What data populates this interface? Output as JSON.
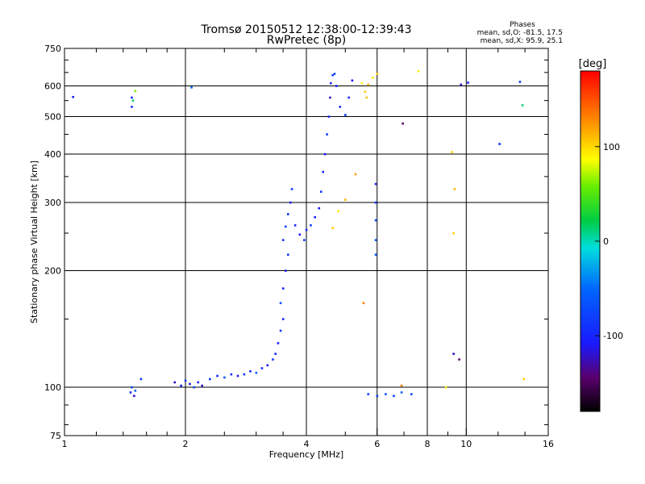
{
  "chart_data": {
    "type": "scatter",
    "title": "Tromsø 20150512 12:38:00-12:39:43",
    "subtitle": "RwPretec (8p)",
    "stats": {
      "heading": "Phases",
      "line_o": "mean, sd,O: -81.5, 17.5",
      "line_x": "mean, sd,X:  95.9, 25.1"
    },
    "xlabel": "Frequency [MHz]",
    "ylabel": "Stationary phase Virtual Height [km]",
    "x_scale": "log2",
    "y_scale": "log",
    "xlim": [
      1,
      16
    ],
    "ylim": [
      75,
      750
    ],
    "x_ticks": [
      {
        "value": 1,
        "label": "1"
      },
      {
        "value": 2,
        "label": "2"
      },
      {
        "value": 4,
        "label": "4"
      },
      {
        "value": 6,
        "label": "6"
      },
      {
        "value": 8,
        "label": "8"
      },
      {
        "value": 10,
        "label": "10"
      },
      {
        "value": 16,
        "label": "16"
      }
    ],
    "x_grid": [
      2,
      4,
      6,
      8,
      10
    ],
    "y_ticks": [
      {
        "value": 75,
        "label": "75"
      },
      {
        "value": 100,
        "label": "100"
      },
      {
        "value": 200,
        "label": "200"
      },
      {
        "value": 300,
        "label": "300"
      },
      {
        "value": 400,
        "label": "400"
      },
      {
        "value": 500,
        "label": "500"
      },
      {
        "value": 600,
        "label": "600"
      },
      {
        "value": 750,
        "label": "750"
      }
    ],
    "y_grid": [
      100,
      200,
      300,
      400,
      500,
      600
    ],
    "grid": true,
    "colorbar": {
      "label": "[deg]",
      "range": [
        -180,
        180
      ],
      "ticks": [
        {
          "value": 100,
          "label": "100"
        },
        {
          "value": 0,
          "label": "0"
        },
        {
          "value": -100,
          "label": "-100"
        }
      ]
    },
    "points": [
      [
        1.05,
        562,
        -110
      ],
      [
        1.47,
        560,
        -100
      ],
      [
        1.47,
        530,
        -95
      ],
      [
        1.5,
        582,
        60
      ],
      [
        1.48,
        550,
        10
      ],
      [
        2.07,
        595,
        -60
      ],
      [
        1.47,
        100,
        -80
      ],
      [
        1.46,
        97,
        -100
      ],
      [
        1.49,
        95,
        -120
      ],
      [
        1.55,
        105,
        -90
      ],
      [
        1.5,
        98,
        -60
      ],
      [
        1.88,
        103,
        -120
      ],
      [
        1.95,
        101,
        -100
      ],
      [
        2.0,
        104,
        -90
      ],
      [
        2.05,
        102,
        -110
      ],
      [
        2.1,
        100,
        -80
      ],
      [
        2.15,
        103,
        -100
      ],
      [
        2.2,
        101,
        -120
      ],
      [
        2.3,
        105,
        -90
      ],
      [
        2.4,
        107,
        -100
      ],
      [
        2.5,
        106,
        -70
      ],
      [
        2.6,
        108,
        -100
      ],
      [
        2.7,
        107,
        -110
      ],
      [
        2.8,
        108,
        -90
      ],
      [
        2.9,
        110,
        -100
      ],
      [
        3.0,
        109,
        -60
      ],
      [
        3.1,
        112,
        -100
      ],
      [
        3.2,
        114,
        -110
      ],
      [
        3.3,
        118,
        -90
      ],
      [
        3.35,
        122,
        -100
      ],
      [
        3.4,
        130,
        -110
      ],
      [
        3.45,
        140,
        -90
      ],
      [
        3.5,
        150,
        -100
      ],
      [
        3.45,
        165,
        -70
      ],
      [
        3.5,
        180,
        -100
      ],
      [
        3.55,
        200,
        -110
      ],
      [
        3.6,
        220,
        -90
      ],
      [
        3.5,
        240,
        -100
      ],
      [
        3.55,
        260,
        -80
      ],
      [
        3.6,
        280,
        -100
      ],
      [
        3.65,
        300,
        -110
      ],
      [
        3.68,
        325,
        -90
      ],
      [
        3.75,
        262,
        -100
      ],
      [
        3.85,
        248,
        -110
      ],
      [
        3.95,
        240,
        -90
      ],
      [
        4.0,
        255,
        -100
      ],
      [
        4.1,
        262,
        -80
      ],
      [
        4.2,
        275,
        -100
      ],
      [
        4.3,
        290,
        -110
      ],
      [
        4.35,
        320,
        -90
      ],
      [
        4.4,
        360,
        -100
      ],
      [
        4.45,
        400,
        -110
      ],
      [
        4.5,
        450,
        -90
      ],
      [
        4.55,
        500,
        -100
      ],
      [
        4.58,
        560,
        -120
      ],
      [
        4.6,
        610,
        -100
      ],
      [
        4.65,
        640,
        -90
      ],
      [
        4.75,
        600,
        -110
      ],
      [
        4.85,
        530,
        -100
      ],
      [
        5.0,
        505,
        -90
      ],
      [
        5.1,
        560,
        -100
      ],
      [
        5.2,
        620,
        -110
      ],
      [
        4.7,
        645,
        -80
      ],
      [
        5.5,
        610,
        90
      ],
      [
        5.6,
        580,
        100
      ],
      [
        5.7,
        605,
        110
      ],
      [
        5.85,
        630,
        95
      ],
      [
        6.0,
        645,
        100
      ],
      [
        5.65,
        560,
        105
      ],
      [
        5.3,
        355,
        120
      ],
      [
        4.65,
        258,
        100
      ],
      [
        4.8,
        285,
        95
      ],
      [
        5.0,
        305,
        110
      ],
      [
        5.55,
        165,
        130
      ],
      [
        7.6,
        655,
        90
      ],
      [
        6.95,
        480,
        -140
      ],
      [
        9.2,
        405,
        100
      ],
      [
        9.35,
        325,
        110
      ],
      [
        9.3,
        250,
        100
      ],
      [
        9.3,
        122,
        -120
      ],
      [
        9.6,
        118,
        -140
      ],
      [
        9.7,
        605,
        -120
      ],
      [
        10.1,
        612,
        -110
      ],
      [
        12.1,
        425,
        -100
      ],
      [
        13.6,
        615,
        -90
      ],
      [
        13.8,
        535,
        10
      ],
      [
        13.9,
        105,
        100
      ],
      [
        8.9,
        100,
        90
      ],
      [
        5.95,
        335,
        -100
      ],
      [
        5.95,
        300,
        -90
      ],
      [
        5.95,
        270,
        -80
      ],
      [
        5.95,
        240,
        -70
      ],
      [
        5.95,
        220,
        -60
      ],
      [
        5.7,
        96,
        -80
      ],
      [
        6.0,
        95,
        -90
      ],
      [
        6.3,
        96,
        -70
      ],
      [
        6.6,
        95,
        -80
      ],
      [
        6.9,
        97,
        -60
      ],
      [
        7.3,
        96,
        -80
      ],
      [
        6.9,
        101,
        130
      ]
    ]
  }
}
